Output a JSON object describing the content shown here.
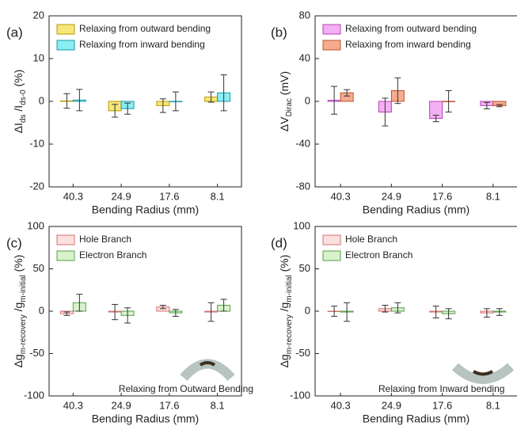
{
  "chart_data": [
    {
      "type": "bar",
      "panel_label": "(a)",
      "xlabel": "Bending Radius (mm)",
      "ylabel_parts": [
        "ΔI",
        "ds",
        " /I",
        "ds-0",
        " (%)"
      ],
      "categories": [
        "40.3",
        "24.9",
        "17.6",
        "8.1"
      ],
      "ylim": [
        -20,
        20
      ],
      "yticks": [
        -20,
        -10,
        0,
        10,
        20
      ],
      "legend": "upper left",
      "series": [
        {
          "name": "Relaxing from outward bending",
          "color": "#f7e77a",
          "edge": "#b89b00",
          "values": [
            0.1,
            -2.2,
            -1,
            1
          ],
          "errors": [
            1.7,
            1.5,
            1.6,
            1.2
          ]
        },
        {
          "name": "Relaxing from inward bending",
          "color": "#8aeef2",
          "edge": "#1a9aa8",
          "values": [
            0.3,
            -1.7,
            0,
            2
          ],
          "errors": [
            2.5,
            1.3,
            2.2,
            4.2
          ]
        }
      ]
    },
    {
      "type": "bar",
      "panel_label": "(b)",
      "xlabel": "Bending Radius (mm)",
      "ylabel_parts": [
        "ΔV",
        "Dirac",
        " (mV)"
      ],
      "categories": [
        "40.3",
        "24.9",
        "17.6",
        "8.1"
      ],
      "ylim": [
        -80,
        80
      ],
      "yticks": [
        -80,
        -40,
        0,
        40,
        80
      ],
      "legend": "upper left",
      "series": [
        {
          "name": "Relaxing from outward bending",
          "color": "#f3b0f3",
          "edge": "#b840b8",
          "values": [
            1,
            -10,
            -16,
            -4
          ],
          "errors": [
            13,
            13,
            3,
            3
          ]
        },
        {
          "name": "Relaxing from inward bending",
          "color": "#f4ab90",
          "edge": "#c0502a",
          "values": [
            8,
            10,
            0,
            -4
          ],
          "errors": [
            3,
            12,
            10,
            1
          ]
        }
      ]
    },
    {
      "type": "bar",
      "panel_label": "(c)",
      "xlabel": "Bending Radius (mm)",
      "ylabel_parts": [
        "Δg",
        "m-recovery",
        " /g",
        "m-initial",
        " (%)"
      ],
      "categories": [
        "40.3",
        "24.9",
        "17.6",
        "8.1"
      ],
      "ylim": [
        -100,
        100
      ],
      "yticks": [
        -100,
        -50,
        0,
        50,
        100
      ],
      "legend": "upper left",
      "annotation": "Relaxing from Outward Bending",
      "series": [
        {
          "name": "Hole Branch",
          "color": "#fde0de",
          "edge": "#d07070",
          "values": [
            -3,
            -1,
            5,
            -1
          ],
          "errors": [
            2,
            9,
            2,
            11
          ]
        },
        {
          "name": "Electron Branch",
          "color": "#d8f2cc",
          "edge": "#5a9e48",
          "values": [
            10,
            -5,
            -2,
            7
          ],
          "errors": [
            10,
            9,
            4,
            7
          ]
        }
      ]
    },
    {
      "type": "bar",
      "panel_label": "(d)",
      "xlabel": "Bending Radius (mm)",
      "ylabel_parts": [
        "Δg",
        "m-recovery",
        " /g",
        "m-initial",
        " (%)"
      ],
      "categories": [
        "40.3",
        "24.9",
        "17.6",
        "8.1"
      ],
      "ylim": [
        -100,
        100
      ],
      "yticks": [
        -100,
        -50,
        0,
        50,
        100
      ],
      "legend": "upper left",
      "annotation": "Relaxing from Inward bending",
      "series": [
        {
          "name": "Hole Branch",
          "color": "#fde0de",
          "edge": "#d07070",
          "values": [
            0,
            3,
            -1,
            -2
          ],
          "errors": [
            6,
            4,
            7,
            5
          ]
        },
        {
          "name": "Electron Branch",
          "color": "#d8f2cc",
          "edge": "#5a9e48",
          "values": [
            -1,
            4,
            -3,
            -1
          ],
          "errors": [
            11,
            6,
            6,
            4
          ]
        }
      ]
    }
  ]
}
